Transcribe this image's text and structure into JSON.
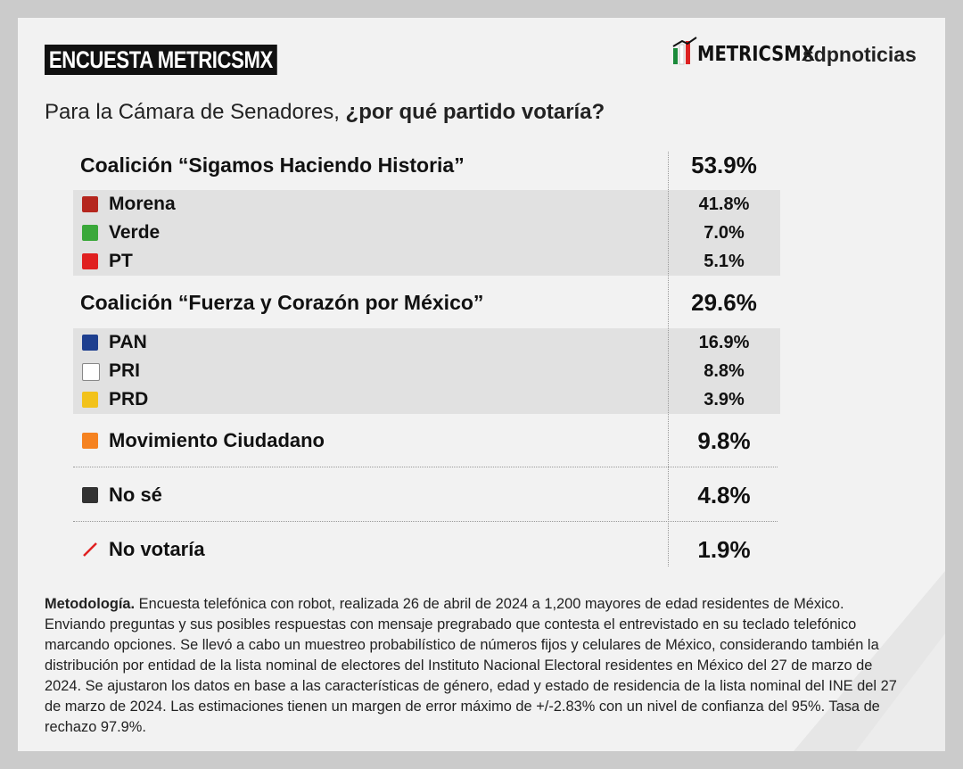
{
  "header": {
    "badge": "ENCUESTA METRICSMX",
    "logo_metrics": "METRICSMX",
    "logo_sdp": "sdpnoticias"
  },
  "question": {
    "lead": "Para la Cámara de Senadores,",
    "emphasis": "¿por qué partido votaría?"
  },
  "table": {
    "rows": [
      {
        "label": "Coalición “Sigamos Haciendo Historia”",
        "value": "53.9%",
        "kind": "group"
      },
      {
        "label": "Morena",
        "value": "41.8%",
        "kind": "party"
      },
      {
        "label": "Verde",
        "value": "7.0%",
        "kind": "party"
      },
      {
        "label": "PT",
        "value": "5.1%",
        "kind": "party"
      },
      {
        "label": "Coalición “Fuerza y Corazón por México”",
        "value": "29.6%",
        "kind": "group"
      },
      {
        "label": "PAN",
        "value": "16.9%",
        "kind": "party"
      },
      {
        "label": "PRI",
        "value": "8.8%",
        "kind": "party"
      },
      {
        "label": "PRD",
        "value": "3.9%",
        "kind": "party"
      },
      {
        "label": "Movimiento Ciudadano",
        "value": "9.8%",
        "kind": "single"
      },
      {
        "label": "No sé",
        "value": "4.8%",
        "kind": "single"
      },
      {
        "label": "No votaría",
        "value": "1.9%",
        "kind": "single"
      }
    ]
  },
  "footer": {
    "heading": "Metodología.",
    "text": "Encuesta telefónica con robot, realizada 26 de abril de 2024 a 1,200 mayores de edad residentes de México. Enviando preguntas y sus posibles respuestas con mensaje pregrabado que contesta el entrevistado en su teclado telefónico marcando opciones. Se llevó a cabo un muestreo probabilístico de números fijos y celulares de México, considerando también la distribución por entidad de la lista nominal de electores del Instituto Nacional Electoral residentes en México del 27 de marzo de 2024. Se ajustaron los datos en base a las características de género, edad y estado de residencia de la lista nominal del INE del 27 de marzo de 2024. Las estimaciones tienen un margen de error máximo de +/-2.83% con un nivel de confianza del 95%. Tasa de rechazo 97.9%."
  }
}
